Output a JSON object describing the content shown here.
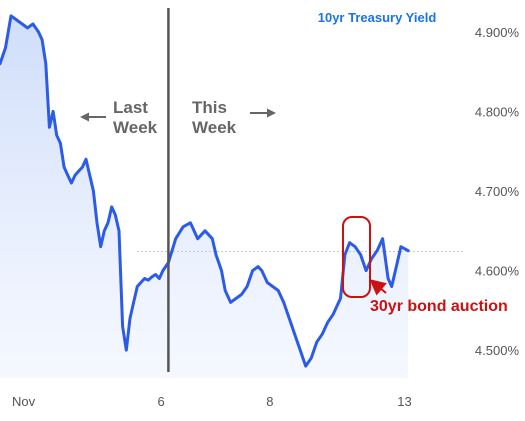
{
  "chart_data": {
    "type": "area",
    "title": "10yr Treasury Yield",
    "title_color": "#1a73e8",
    "line_color": "#2c5be8",
    "fill_color": "#d6e2fb",
    "xlabel": "",
    "ylabel": "",
    "x_ticks": [
      {
        "label": "Nov",
        "x": 0
      },
      {
        "label": "6",
        "x": 4.4
      },
      {
        "label": "8",
        "x": 7.37
      },
      {
        "label": "13",
        "x": 11.05
      }
    ],
    "y_ticks": [
      "4.500%",
      "4.600%",
      "4.700%",
      "4.800%",
      "4.900%"
    ],
    "ylim": [
      4.465,
      4.94
    ],
    "xlim": [
      0,
      11.8
    ],
    "grid": false,
    "reference_value": 4.624,
    "series": [
      {
        "values": [
          [
            0.0,
            4.86
          ],
          [
            0.15,
            4.88
          ],
          [
            0.3,
            4.92
          ],
          [
            0.45,
            4.915
          ],
          [
            0.6,
            4.91
          ],
          [
            0.75,
            4.905
          ],
          [
            0.9,
            4.91
          ],
          [
            1.05,
            4.9
          ],
          [
            1.15,
            4.89
          ],
          [
            1.25,
            4.86
          ],
          [
            1.35,
            4.78
          ],
          [
            1.45,
            4.8
          ],
          [
            1.55,
            4.77
          ],
          [
            1.65,
            4.76
          ],
          [
            1.75,
            4.73
          ],
          [
            1.85,
            4.72
          ],
          [
            1.95,
            4.71
          ],
          [
            2.05,
            4.72
          ],
          [
            2.15,
            4.725
          ],
          [
            2.25,
            4.73
          ],
          [
            2.35,
            4.74
          ],
          [
            2.45,
            4.72
          ],
          [
            2.55,
            4.7
          ],
          [
            2.65,
            4.66
          ],
          [
            2.75,
            4.63
          ],
          [
            2.85,
            4.65
          ],
          [
            2.95,
            4.66
          ],
          [
            3.05,
            4.68
          ],
          [
            3.15,
            4.67
          ],
          [
            3.25,
            4.65
          ],
          [
            3.35,
            4.53
          ],
          [
            3.45,
            4.5
          ],
          [
            3.55,
            4.54
          ],
          [
            3.65,
            4.56
          ],
          [
            3.75,
            4.58
          ],
          [
            3.85,
            4.585
          ],
          [
            3.95,
            4.59
          ],
          [
            4.05,
            4.588
          ],
          [
            4.15,
            4.592
          ],
          [
            4.25,
            4.595
          ],
          [
            4.35,
            4.59
          ],
          [
            4.45,
            4.6
          ],
          [
            4.6,
            4.61
          ],
          [
            4.8,
            4.64
          ],
          [
            5.0,
            4.655
          ],
          [
            5.2,
            4.66
          ],
          [
            5.4,
            4.64
          ],
          [
            5.6,
            4.65
          ],
          [
            5.8,
            4.64
          ],
          [
            5.9,
            4.62
          ],
          [
            6.05,
            4.6
          ],
          [
            6.15,
            4.575
          ],
          [
            6.3,
            4.56
          ],
          [
            6.45,
            4.565
          ],
          [
            6.6,
            4.57
          ],
          [
            6.75,
            4.58
          ],
          [
            6.9,
            4.6
          ],
          [
            7.05,
            4.605
          ],
          [
            7.15,
            4.6
          ],
          [
            7.3,
            4.585
          ],
          [
            7.45,
            4.58
          ],
          [
            7.6,
            4.575
          ],
          [
            7.75,
            4.56
          ],
          [
            7.9,
            4.54
          ],
          [
            8.05,
            4.52
          ],
          [
            8.2,
            4.5
          ],
          [
            8.35,
            4.48
          ],
          [
            8.5,
            4.49
          ],
          [
            8.65,
            4.51
          ],
          [
            8.8,
            4.52
          ],
          [
            8.95,
            4.535
          ],
          [
            9.1,
            4.545
          ],
          [
            9.2,
            4.555
          ],
          [
            9.3,
            4.565
          ],
          [
            9.42,
            4.62
          ],
          [
            9.55,
            4.635
          ],
          [
            9.7,
            4.63
          ],
          [
            9.85,
            4.62
          ],
          [
            10.0,
            4.6
          ],
          [
            10.15,
            4.615
          ],
          [
            10.3,
            4.625
          ],
          [
            10.45,
            4.64
          ],
          [
            10.6,
            4.59
          ],
          [
            10.7,
            4.58
          ],
          [
            10.8,
            4.6
          ],
          [
            10.95,
            4.63
          ],
          [
            11.15,
            4.625
          ]
        ]
      }
    ],
    "annotations": [
      {
        "text": "Last",
        "color": "#666666"
      },
      {
        "text": "Week",
        "color": "#666666"
      },
      {
        "text": "This",
        "color": "#666666"
      },
      {
        "text": "Week",
        "color": "#666666"
      },
      {
        "text": "30yr bond auction",
        "color": "#cc1111"
      }
    ],
    "divider_x": 4.6
  }
}
